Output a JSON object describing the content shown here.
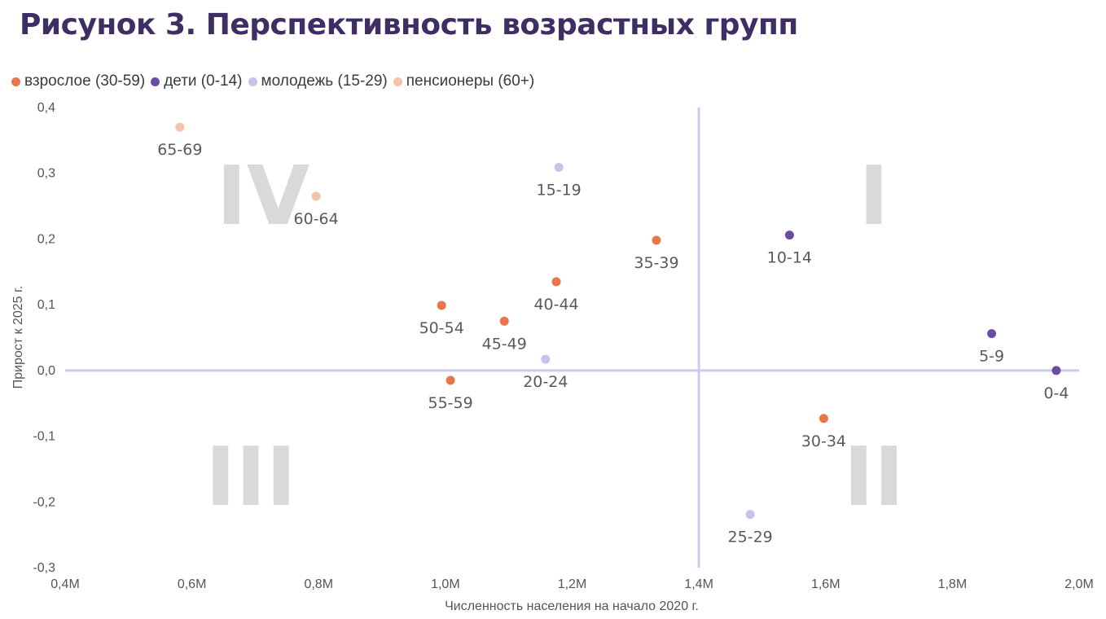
{
  "title": "Рисунок 3. Перспективность возрастных групп",
  "legend": [
    {
      "label": "взрослое (30-59)",
      "series": "adult",
      "color": "#e8764a"
    },
    {
      "label": "дети (0-14)",
      "series": "children",
      "color": "#6a4ca6"
    },
    {
      "label": "молодежь (15-29)",
      "series": "youth",
      "color": "#cbc1e8"
    },
    {
      "label": "пенсионеры (60+)",
      "series": "pensioners",
      "color": "#f4c3ad"
    }
  ],
  "colors": {
    "title": "#3f2e63",
    "reference_line": "#d2c7ee",
    "quadrant_label": "#d9d9d9"
  },
  "chart_data": {
    "type": "scatter",
    "title": "Рисунок 3. Перспективность возрастных групп",
    "xlabel": "Численность населения на начало 2020 г.",
    "ylabel": "Прирост к 2025 г.",
    "xlim": [
      0.4,
      2.0
    ],
    "ylim": [
      -0.3,
      0.4
    ],
    "x_unit": "M",
    "x_ticks": [
      0.4,
      0.6,
      0.8,
      1.0,
      1.2,
      1.4,
      1.6,
      1.8,
      2.0
    ],
    "x_tick_labels": [
      "0,4M",
      "0,6M",
      "0,8M",
      "1,0M",
      "1,2M",
      "1,4M",
      "1,6M",
      "1,8M",
      "2,0M"
    ],
    "y_ticks": [
      0.4,
      0.3,
      0.2,
      0.1,
      0.0,
      -0.1,
      -0.2,
      -0.3
    ],
    "y_tick_labels": [
      "0,4",
      "0,3",
      "0,2",
      "0,1",
      "0,0",
      "-0,1",
      "-0,2",
      "-0,3"
    ],
    "grid": false,
    "legend_position": "top-left",
    "reference_lines": {
      "x": 1.4,
      "y": 0.0
    },
    "quadrant_labels": [
      {
        "label": "I",
        "quadrant": "top-right"
      },
      {
        "label": "II",
        "quadrant": "bottom-right"
      },
      {
        "label": "III",
        "quadrant": "bottom-left"
      },
      {
        "label": "IV",
        "quadrant": "top-left"
      }
    ],
    "series": [
      {
        "name": "взрослое (30-59)",
        "key": "adult",
        "color": "#e8764a",
        "points": [
          {
            "label": "30-34",
            "x": 1.597,
            "y": -0.073
          },
          {
            "label": "35-39",
            "x": 1.333,
            "y": 0.198
          },
          {
            "label": "40-44",
            "x": 1.175,
            "y": 0.135
          },
          {
            "label": "45-49",
            "x": 1.093,
            "y": 0.075
          },
          {
            "label": "50-54",
            "x": 0.994,
            "y": 0.099
          },
          {
            "label": "55-59",
            "x": 1.008,
            "y": -0.015
          }
        ]
      },
      {
        "name": "дети (0-14)",
        "key": "children",
        "color": "#6a4ca6",
        "points": [
          {
            "label": "0-4",
            "x": 1.964,
            "y": 0.0
          },
          {
            "label": "5-9",
            "x": 1.862,
            "y": 0.056
          },
          {
            "label": "10-14",
            "x": 1.543,
            "y": 0.206
          }
        ]
      },
      {
        "name": "молодежь (15-29)",
        "key": "youth",
        "color": "#cbc1e8",
        "points": [
          {
            "label": "15-19",
            "x": 1.179,
            "y": 0.309
          },
          {
            "label": "20-24",
            "x": 1.158,
            "y": 0.017
          },
          {
            "label": "25-29",
            "x": 1.481,
            "y": -0.219
          }
        ]
      },
      {
        "name": "пенсионеры (60+)",
        "key": "pensioners",
        "color": "#f4c3ad",
        "points": [
          {
            "label": "60-64",
            "x": 0.796,
            "y": 0.265
          },
          {
            "label": "65-69",
            "x": 0.581,
            "y": 0.37
          }
        ]
      }
    ]
  }
}
